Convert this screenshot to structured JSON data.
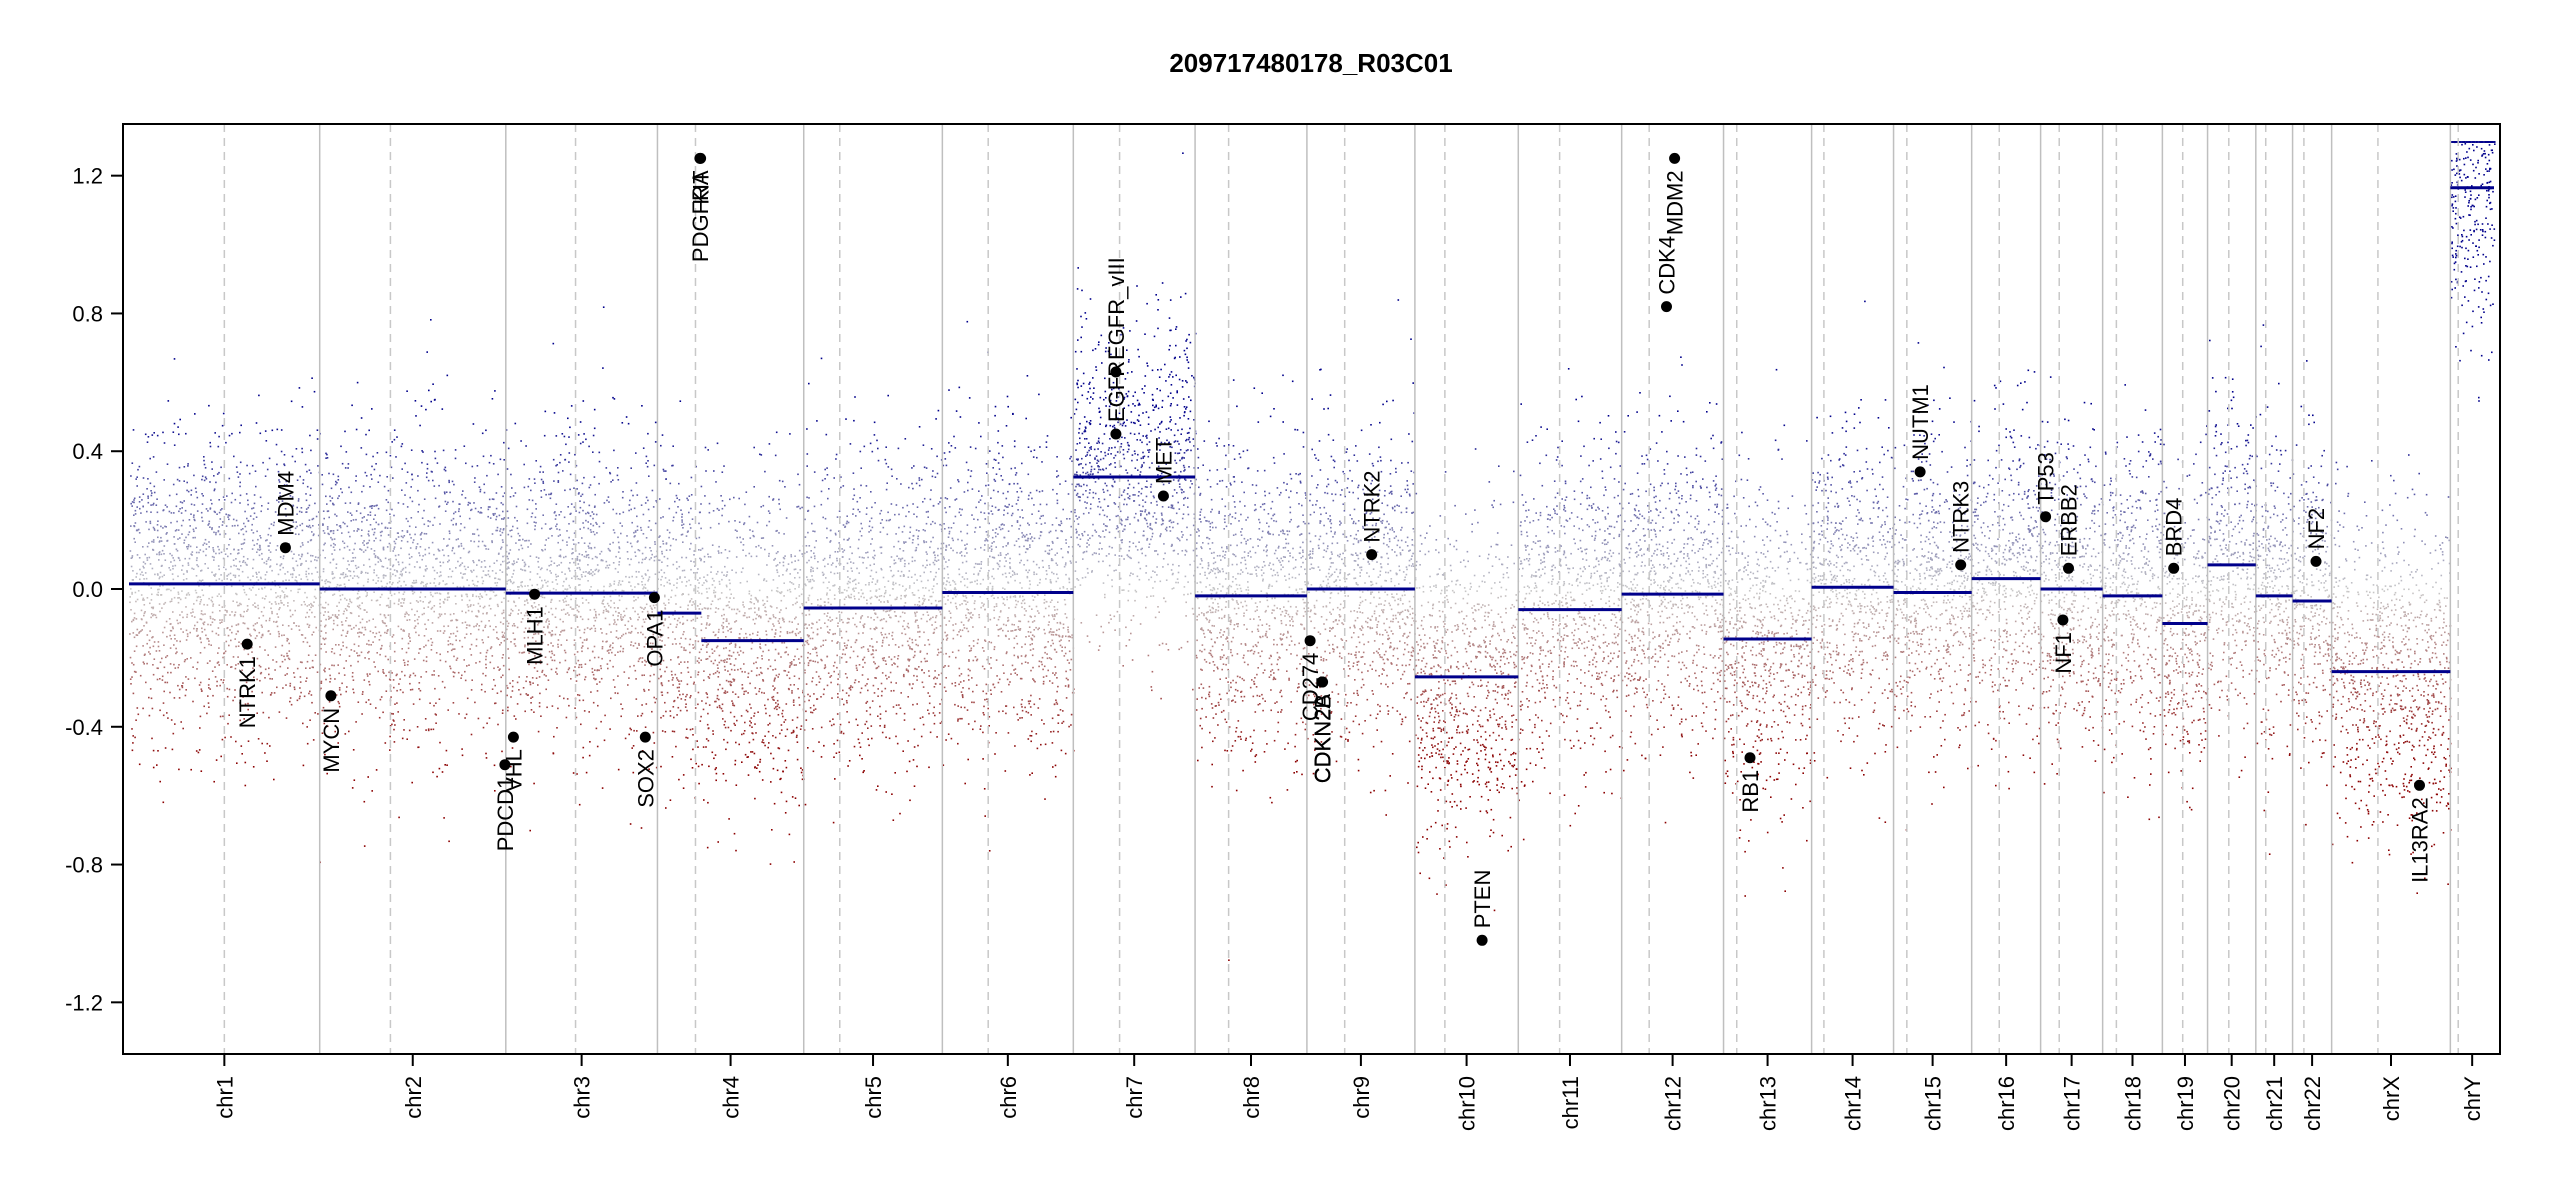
{
  "chart_data": {
    "type": "scatter",
    "title": "209717480178_R03C01",
    "xlabel": "",
    "ylabel": "",
    "ylim": [
      -1.35,
      1.35
    ],
    "yticks": [
      -1.2,
      -0.8,
      -0.4,
      0.0,
      0.4,
      0.8,
      1.2
    ],
    "ytick_labels": [
      "-1.2",
      "-0.8",
      "-0.4",
      "0.0",
      "0.4",
      "0.8",
      "1.2"
    ],
    "colors": {
      "gain": "#00008b",
      "loss": "#8b0000",
      "neutral": "#c8c8c8",
      "segment": "#00008b",
      "border": "#bfbfbf",
      "centromere": "#c8c8c8"
    },
    "chromosomes": [
      {
        "name": "chr1",
        "size": 249,
        "centromere": 0.5,
        "segments": [
          {
            "start": 0,
            "end": 1,
            "mean": 0.015
          }
        ]
      },
      {
        "name": "chr2",
        "size": 243,
        "centromere": 0.38,
        "segments": [
          {
            "start": 0,
            "end": 1,
            "mean": 0.0
          }
        ]
      },
      {
        "name": "chr3",
        "size": 198,
        "centromere": 0.46,
        "segments": [
          {
            "start": 0,
            "end": 1,
            "mean": -0.012
          }
        ]
      },
      {
        "name": "chr4",
        "size": 191,
        "centromere": 0.26,
        "segments": [
          {
            "start": 0,
            "end": 0.3,
            "mean": -0.07
          },
          {
            "start": 0.3,
            "end": 1,
            "mean": -0.15
          }
        ]
      },
      {
        "name": "chr5",
        "size": 181,
        "centromere": 0.26,
        "segments": [
          {
            "start": 0,
            "end": 1,
            "mean": -0.055
          }
        ]
      },
      {
        "name": "chr6",
        "size": 171,
        "centromere": 0.35,
        "segments": [
          {
            "start": 0,
            "end": 1,
            "mean": -0.01
          }
        ]
      },
      {
        "name": "chr7",
        "size": 159,
        "centromere": 0.38,
        "segments": [
          {
            "start": 0,
            "end": 1,
            "mean": 0.325
          }
        ]
      },
      {
        "name": "chr8",
        "size": 146,
        "centromere": 0.3,
        "segments": [
          {
            "start": 0,
            "end": 1,
            "mean": -0.02
          }
        ]
      },
      {
        "name": "chr9",
        "size": 141,
        "centromere": 0.35,
        "segments": [
          {
            "start": 0,
            "end": 1,
            "mean": 0.0
          }
        ]
      },
      {
        "name": "chr10",
        "size": 135,
        "centromere": 0.29,
        "segments": [
          {
            "start": 0,
            "end": 1,
            "mean": -0.255
          }
        ]
      },
      {
        "name": "chr11",
        "size": 135,
        "centromere": 0.4,
        "segments": [
          {
            "start": 0,
            "end": 1,
            "mean": -0.06
          }
        ]
      },
      {
        "name": "chr12",
        "size": 133,
        "centromere": 0.27,
        "segments": [
          {
            "start": 0,
            "end": 1,
            "mean": -0.015
          }
        ]
      },
      {
        "name": "chr13",
        "size": 115,
        "centromere": 0.15,
        "segments": [
          {
            "start": 0,
            "end": 1,
            "mean": -0.145
          }
        ]
      },
      {
        "name": "chr14",
        "size": 107,
        "centromere": 0.15,
        "segments": [
          {
            "start": 0,
            "end": 1,
            "mean": 0.005
          }
        ]
      },
      {
        "name": "chr15",
        "size": 102,
        "centromere": 0.17,
        "segments": [
          {
            "start": 0,
            "end": 1,
            "mean": -0.01
          }
        ]
      },
      {
        "name": "chr16",
        "size": 90,
        "centromere": 0.4,
        "segments": [
          {
            "start": 0,
            "end": 1,
            "mean": 0.03
          }
        ]
      },
      {
        "name": "chr17",
        "size": 81,
        "centromere": 0.3,
        "segments": [
          {
            "start": 0,
            "end": 1,
            "mean": 0.0
          }
        ]
      },
      {
        "name": "chr18",
        "size": 78,
        "centromere": 0.23,
        "segments": [
          {
            "start": 0,
            "end": 1,
            "mean": -0.02
          }
        ]
      },
      {
        "name": "chr19",
        "size": 59,
        "centromere": 0.45,
        "segments": [
          {
            "start": 0,
            "end": 1,
            "mean": -0.1
          }
        ]
      },
      {
        "name": "chr20",
        "size": 63,
        "centromere": 0.44,
        "segments": [
          {
            "start": 0,
            "end": 1,
            "mean": 0.07
          }
        ]
      },
      {
        "name": "chr21",
        "size": 48,
        "centromere": 0.27,
        "segments": [
          {
            "start": 0,
            "end": 1,
            "mean": -0.02
          }
        ]
      },
      {
        "name": "chr22",
        "size": 51,
        "centromere": 0.29,
        "segments": [
          {
            "start": 0,
            "end": 1,
            "mean": -0.035
          }
        ]
      },
      {
        "name": "chrX",
        "size": 155,
        "centromere": 0.39,
        "segments": [
          {
            "start": 0,
            "end": 1,
            "mean": -0.24
          }
        ]
      },
      {
        "name": "chrY",
        "size": 57,
        "centromere": 0.18,
        "segments": [
          {
            "start": 0,
            "end": 1,
            "mean": 1.165
          }
        ]
      }
    ],
    "genes": [
      {
        "name": "NTRK1",
        "chr": "chr1",
        "pos": 0.62,
        "value": -0.16,
        "label_side": "below"
      },
      {
        "name": "MDM4",
        "chr": "chr1",
        "pos": 0.82,
        "value": 0.12,
        "label_side": "above"
      },
      {
        "name": "MYCN",
        "chr": "chr2",
        "pos": 0.06,
        "value": -0.31,
        "label_side": "below"
      },
      {
        "name": "PDCD1",
        "chr": "chr2",
        "pos": 0.995,
        "value": -0.51,
        "label_side": "below"
      },
      {
        "name": "VHL",
        "chr": "chr3",
        "pos": 0.05,
        "value": -0.43,
        "label_side": "below"
      },
      {
        "name": "MLH1",
        "chr": "chr3",
        "pos": 0.19,
        "value": -0.015,
        "label_side": "below"
      },
      {
        "name": "SOX2",
        "chr": "chr3",
        "pos": 0.92,
        "value": -0.43,
        "label_side": "below"
      },
      {
        "name": "OPA1",
        "chr": "chr3",
        "pos": 0.98,
        "value": -0.025,
        "label_side": "below"
      },
      {
        "name": "PDGFRA",
        "chr": "chr4",
        "pos": 0.29,
        "value": 1.25,
        "label_side": "below"
      },
      {
        "name": "KIT",
        "chr": "chr4",
        "pos": 0.295,
        "value": 1.25,
        "label_side": "below"
      },
      {
        "name": "EGFR",
        "chr": "chr7",
        "pos": 0.35,
        "value": 0.45,
        "label_side": "above"
      },
      {
        "name": "EGFR_vIII",
        "chr": "chr7",
        "pos": 0.35,
        "value": 0.63,
        "label_side": "above"
      },
      {
        "name": "MET",
        "chr": "chr7",
        "pos": 0.74,
        "value": 0.27,
        "label_side": "above"
      },
      {
        "name": "CD274",
        "chr": "chr9",
        "pos": 0.03,
        "value": -0.15,
        "label_side": "below"
      },
      {
        "name": "CDKN2A",
        "chr": "chr9",
        "pos": 0.14,
        "value": -0.27,
        "label_side": "below"
      },
      {
        "name": "CDKN2B",
        "chr": "chr9",
        "pos": 0.145,
        "value": -0.27,
        "label_side": "below"
      },
      {
        "name": "NTRK2",
        "chr": "chr9",
        "pos": 0.6,
        "value": 0.1,
        "label_side": "above"
      },
      {
        "name": "PTEN",
        "chr": "chr10",
        "pos": 0.65,
        "value": -1.02,
        "label_side": "above"
      },
      {
        "name": "CDK4",
        "chr": "chr12",
        "pos": 0.44,
        "value": 0.82,
        "label_side": "above"
      },
      {
        "name": "MDM2",
        "chr": "chr12",
        "pos": 0.52,
        "value": 1.25,
        "label_side": "below"
      },
      {
        "name": "RB1",
        "chr": "chr13",
        "pos": 0.3,
        "value": -0.49,
        "label_side": "below"
      },
      {
        "name": "NUTM1",
        "chr": "chr15",
        "pos": 0.34,
        "value": 0.34,
        "label_side": "above"
      },
      {
        "name": "NTRK3",
        "chr": "chr15",
        "pos": 0.86,
        "value": 0.07,
        "label_side": "above"
      },
      {
        "name": "TP53",
        "chr": "chr17",
        "pos": 0.08,
        "value": 0.21,
        "label_side": "above"
      },
      {
        "name": "NF1",
        "chr": "chr17",
        "pos": 0.36,
        "value": -0.09,
        "label_side": "below"
      },
      {
        "name": "ERBB2",
        "chr": "chr17",
        "pos": 0.45,
        "value": 0.06,
        "label_side": "above"
      },
      {
        "name": "BRD4",
        "chr": "chr19",
        "pos": 0.25,
        "value": 0.06,
        "label_side": "above"
      },
      {
        "name": "NF2",
        "chr": "chr22",
        "pos": 0.6,
        "value": 0.08,
        "label_side": "above"
      },
      {
        "name": "IL13RA2",
        "chr": "chrX",
        "pos": 0.74,
        "value": -0.57,
        "label_side": "below"
      }
    ]
  }
}
